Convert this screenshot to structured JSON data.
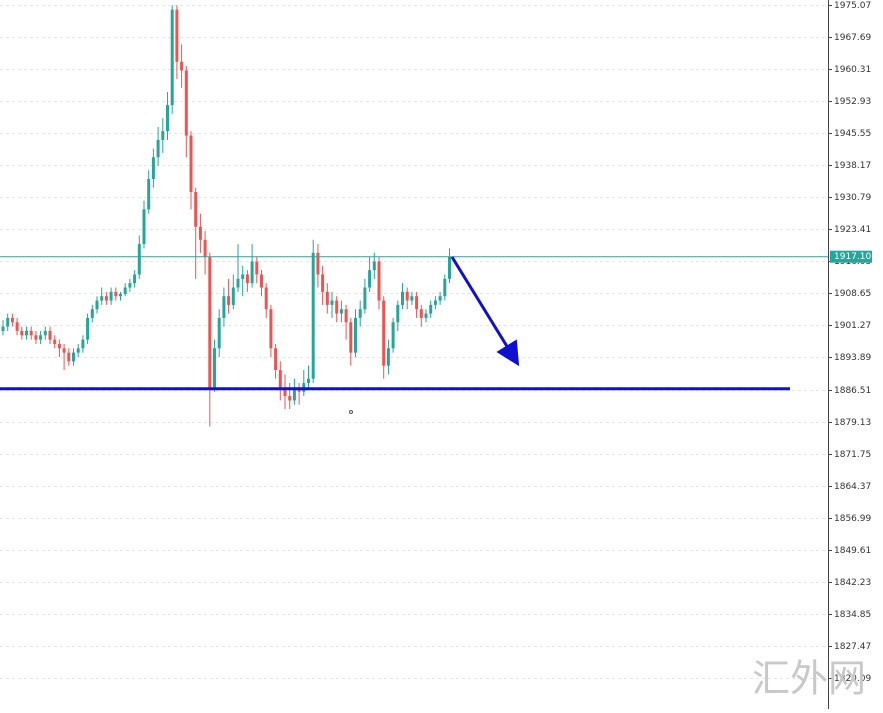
{
  "chart_data": {
    "type": "candlestick",
    "ylim": [
      1812.93,
      1976.22
    ],
    "yticks": [
      1975.07,
      1967.69,
      1960.31,
      1952.93,
      1945.55,
      1938.17,
      1930.79,
      1923.41,
      1916.03,
      1908.65,
      1901.27,
      1893.89,
      1886.51,
      1879.13,
      1871.75,
      1864.37,
      1856.99,
      1849.61,
      1842.23,
      1834.85,
      1827.47,
      1820.09
    ],
    "grid": true,
    "up_color": "#26a69a",
    "down_color": "#ef5350",
    "last_price": {
      "value": 1917.1,
      "label": "1917.10"
    },
    "last_price_color": "#26a69a",
    "support_level": 1886.7,
    "support_color": "#1010d0",
    "watermark": "汇外网",
    "ohlc": [
      [
        1900,
        1902.5,
        1899,
        1901
      ],
      [
        1901,
        1904,
        1900,
        1903
      ],
      [
        1903,
        1904,
        1901,
        1902
      ],
      [
        1902,
        1903,
        1899,
        1900
      ],
      [
        1900,
        1901,
        1898,
        1899
      ],
      [
        1899,
        1901,
        1898,
        1900
      ],
      [
        1900,
        1901,
        1898,
        1899
      ],
      [
        1899,
        1900,
        1897,
        1898
      ],
      [
        1898,
        1900,
        1897,
        1899
      ],
      [
        1899,
        1901,
        1898,
        1900
      ],
      [
        1900,
        1901,
        1897,
        1898
      ],
      [
        1898,
        1899,
        1896,
        1897
      ],
      [
        1897,
        1898,
        1894,
        1896
      ],
      [
        1896,
        1897,
        1891,
        1895
      ],
      [
        1895,
        1896,
        1892,
        1893
      ],
      [
        1893,
        1896,
        1892,
        1895
      ],
      [
        1895,
        1897,
        1894,
        1896
      ],
      [
        1896,
        1899,
        1895,
        1898
      ],
      [
        1898,
        1904,
        1897,
        1903
      ],
      [
        1903,
        1906,
        1902,
        1905
      ],
      [
        1905,
        1908,
        1904,
        1907
      ],
      [
        1907,
        1910,
        1906,
        1908
      ],
      [
        1908,
        1909,
        1906,
        1907
      ],
      [
        1907,
        1910,
        1906,
        1909
      ],
      [
        1909,
        1910,
        1907,
        1908
      ],
      [
        1908,
        1909,
        1907,
        1908.5
      ],
      [
        1908.5,
        1911,
        1908,
        1910
      ],
      [
        1910,
        1912,
        1909,
        1911
      ],
      [
        1911,
        1914,
        1910,
        1913
      ],
      [
        1913,
        1922,
        1912,
        1920
      ],
      [
        1920,
        1930,
        1919,
        1928
      ],
      [
        1928,
        1937,
        1927,
        1935
      ],
      [
        1935,
        1942,
        1933,
        1940
      ],
      [
        1940,
        1947,
        1938,
        1944
      ],
      [
        1944,
        1949,
        1941,
        1946
      ],
      [
        1946,
        1955,
        1944,
        1952
      ],
      [
        1952,
        1975,
        1950,
        1974
      ],
      [
        1974,
        1975,
        1958,
        1962
      ],
      [
        1962,
        1966,
        1956,
        1960
      ],
      [
        1960,
        1961,
        1940,
        1945
      ],
      [
        1945,
        1946,
        1928,
        1932
      ],
      [
        1932,
        1933,
        1912,
        1924
      ],
      [
        1924,
        1927,
        1918,
        1921
      ],
      [
        1921,
        1923,
        1913,
        1917
      ],
      [
        1917,
        1918,
        1878,
        1887
      ],
      [
        1887,
        1898,
        1886,
        1896
      ],
      [
        1896,
        1905,
        1894,
        1903
      ],
      [
        1903,
        1910,
        1901,
        1908
      ],
      [
        1908,
        1912,
        1904,
        1906
      ],
      [
        1906,
        1913,
        1905,
        1910
      ],
      [
        1910,
        1920,
        1909,
        1912
      ],
      [
        1912,
        1915,
        1908,
        1913
      ],
      [
        1913,
        1914,
        1909,
        1911
      ],
      [
        1911,
        1920,
        1910,
        1916
      ],
      [
        1916,
        1917,
        1911,
        1913
      ],
      [
        1913,
        1914,
        1908,
        1910
      ],
      [
        1910,
        1911,
        1903,
        1905
      ],
      [
        1905,
        1906,
        1894,
        1896
      ],
      [
        1896,
        1897,
        1889,
        1891
      ],
      [
        1891,
        1893,
        1884,
        1887
      ],
      [
        1887,
        1890,
        1882,
        1885
      ],
      [
        1885,
        1888,
        1882,
        1884
      ],
      [
        1884,
        1889,
        1883,
        1887
      ],
      [
        1887,
        1888,
        1883,
        1886
      ],
      [
        1886,
        1891,
        1885,
        1888
      ],
      [
        1888,
        1892,
        1887,
        1889
      ],
      [
        1889,
        1921,
        1888,
        1918
      ],
      [
        1918,
        1920,
        1910,
        1913
      ],
      [
        1913,
        1915,
        1906,
        1909
      ],
      [
        1909,
        1911,
        1904,
        1906
      ],
      [
        1906,
        1909,
        1903,
        1907
      ],
      [
        1907,
        1908,
        1902,
        1904
      ],
      [
        1904,
        1907,
        1902,
        1905
      ],
      [
        1905,
        1906,
        1898,
        1902
      ],
      [
        1902,
        1903,
        1892,
        1895
      ],
      [
        1895,
        1905,
        1894,
        1903
      ],
      [
        1903,
        1907,
        1901,
        1905
      ],
      [
        1905,
        1912,
        1904,
        1910
      ],
      [
        1910,
        1917,
        1909,
        1914
      ],
      [
        1914,
        1918,
        1912,
        1916
      ],
      [
        1916,
        1917,
        1905,
        1907
      ],
      [
        1907,
        1908,
        1889,
        1892
      ],
      [
        1892,
        1898,
        1890,
        1896
      ],
      [
        1896,
        1903,
        1895,
        1902
      ],
      [
        1902,
        1907,
        1900,
        1906
      ],
      [
        1906,
        1911,
        1905,
        1909
      ],
      [
        1909,
        1910,
        1905,
        1907
      ],
      [
        1907,
        1909,
        1906,
        1908
      ],
      [
        1908,
        1909,
        1903,
        1905
      ],
      [
        1905,
        1906,
        1901,
        1903
      ],
      [
        1903,
        1905,
        1902,
        1904
      ],
      [
        1904,
        1907,
        1903,
        1906
      ],
      [
        1906,
        1908,
        1905,
        1907
      ],
      [
        1907,
        1909,
        1906,
        1908
      ],
      [
        1908,
        1913,
        1907,
        1912
      ],
      [
        1912,
        1919,
        1911,
        1917.1
      ]
    ]
  }
}
